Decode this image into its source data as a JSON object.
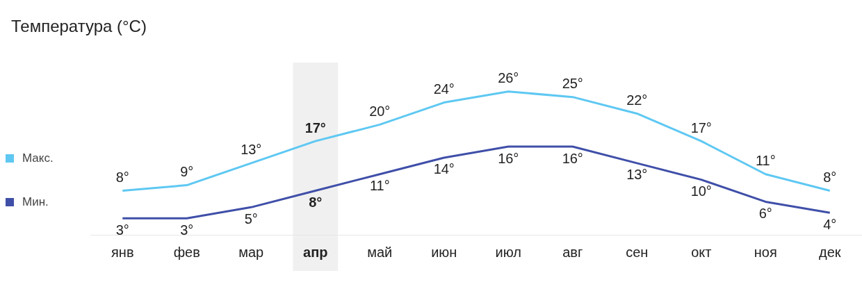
{
  "chart_data": {
    "type": "line",
    "title": "Температура (°C)",
    "categories": [
      "янв",
      "фев",
      "мар",
      "апр",
      "май",
      "июн",
      "июл",
      "авг",
      "сен",
      "окт",
      "ноя",
      "дек"
    ],
    "series": [
      {
        "name": "Макс.",
        "color": "#5ec8f2",
        "values": [
          8,
          9,
          13,
          17,
          20,
          24,
          26,
          25,
          22,
          17,
          11,
          8
        ],
        "value_labels": [
          "8°",
          "9°",
          "13°",
          "17°",
          "20°",
          "24°",
          "26°",
          "25°",
          "22°",
          "17°",
          "11°",
          "8°"
        ]
      },
      {
        "name": "Мин.",
        "color": "#3f4fa8",
        "values": [
          3,
          3,
          5,
          8,
          11,
          14,
          16,
          16,
          13,
          10,
          6,
          4
        ],
        "value_labels": [
          "3°",
          "3°",
          "5°",
          "8°",
          "11°",
          "14°",
          "16°",
          "16°",
          "13°",
          "10°",
          "6°",
          "4°"
        ]
      }
    ],
    "bands": [
      {
        "axis": "x",
        "from": "апр",
        "to": "апр",
        "color": "#f0f0f0"
      }
    ],
    "legend": "left",
    "grid": false,
    "marker": "none",
    "line_style": "solid"
  }
}
